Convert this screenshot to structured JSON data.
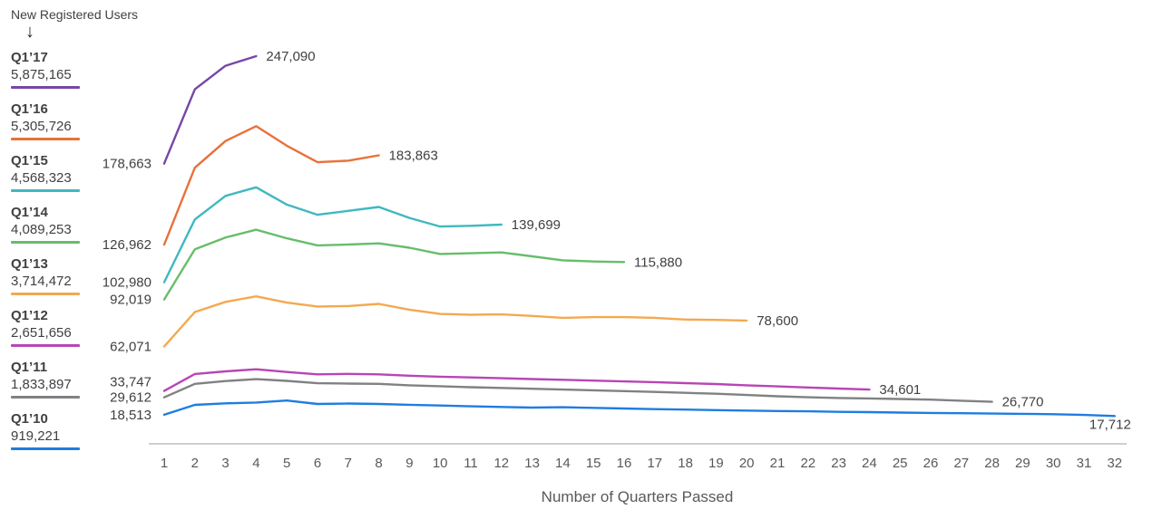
{
  "header": {
    "title": "New Registered Users"
  },
  "x_axis": {
    "title": "Number of Quarters Passed",
    "ticks": [
      "1",
      "2",
      "3",
      "4",
      "5",
      "6",
      "7",
      "8",
      "9",
      "10",
      "11",
      "12",
      "13",
      "14",
      "15",
      "16",
      "17",
      "18",
      "19",
      "20",
      "21",
      "22",
      "23",
      "24",
      "25",
      "26",
      "27",
      "28",
      "29",
      "30",
      "31",
      "32"
    ]
  },
  "colors": {
    "text_dark": "#414042",
    "text_muted": "#58595b",
    "axis_line": "#bcbec0",
    "background": "#ffffff"
  },
  "chart_data": {
    "type": "line",
    "title": "New Registered Users",
    "xlabel": "Number of Quarters Passed",
    "ylabel": "",
    "xlim": [
      1,
      32
    ],
    "ylim": [
      0,
      250000
    ],
    "grid": false,
    "legend_position": "left",
    "series": [
      {
        "id": "q1-17",
        "name": "Q1’17",
        "cohort_total": "5,875,165",
        "color": "#7646a6",
        "start_label": "178,663",
        "end_label": "247,090",
        "values": [
          178663,
          226000,
          241000,
          247090
        ]
      },
      {
        "id": "q1-16",
        "name": "Q1’16",
        "cohort_total": "5,305,726",
        "color": "#e8713a",
        "start_label": "126,962",
        "end_label": "183,863",
        "values": [
          126962,
          176000,
          193000,
          202500,
          190000,
          179500,
          180500,
          183863
        ]
      },
      {
        "id": "q1-15",
        "name": "Q1’15",
        "cohort_total": "4,568,323",
        "color": "#3fb8c1",
        "start_label": "102,980",
        "end_label": "139,699",
        "values": [
          102980,
          143000,
          158000,
          163500,
          152500,
          146000,
          148500,
          151000,
          144000,
          138500,
          139000,
          139699
        ]
      },
      {
        "id": "q1-14",
        "name": "Q1’14",
        "cohort_total": "4,089,253",
        "color": "#67bd6b",
        "start_label": "92,019",
        "end_label": "115,880",
        "values": [
          92019,
          124000,
          131500,
          136500,
          131000,
          126500,
          127000,
          127800,
          125000,
          121000,
          121500,
          122000,
          119500,
          117000,
          116200,
          115880
        ]
      },
      {
        "id": "q1-13",
        "name": "Q1’13",
        "cohort_total": "3,714,472",
        "color": "#f3a950",
        "start_label": "62,071",
        "end_label": "78,600",
        "values": [
          62071,
          84000,
          90500,
          94000,
          90000,
          87500,
          87800,
          89200,
          85500,
          82800,
          82300,
          82500,
          81500,
          80300,
          80800,
          80800,
          80300,
          79200,
          79000,
          78600
        ]
      },
      {
        "id": "q1-12",
        "name": "Q1’12",
        "cohort_total": "2,651,656",
        "color": "#b845b5",
        "start_label": "33,747",
        "end_label": "34,601",
        "values": [
          33747,
          44500,
          46200,
          47500,
          45800,
          44300,
          44600,
          44300,
          43400,
          42800,
          42300,
          41800,
          41300,
          40800,
          40300,
          39800,
          39300,
          38700,
          38100,
          37300,
          36600,
          35900,
          35200,
          34601
        ]
      },
      {
        "id": "q1-11",
        "name": "Q1’11",
        "cohort_total": "1,833,897",
        "color": "#808184",
        "start_label": "29,612",
        "end_label": "26,770",
        "values": [
          29612,
          38200,
          40000,
          41200,
          40100,
          38600,
          38400,
          38200,
          37300,
          36700,
          36100,
          35600,
          35100,
          34600,
          34100,
          33600,
          33100,
          32500,
          31900,
          31100,
          30300,
          29700,
          29200,
          28900,
          28600,
          28200,
          27500,
          26770
        ]
      },
      {
        "id": "q1-10",
        "name": "Q1’10",
        "cohort_total": "919,221",
        "color": "#1f7de0",
        "start_label": "18,513",
        "end_label": "17,712",
        "values": [
          18513,
          24800,
          25800,
          26300,
          27600,
          25400,
          25700,
          25400,
          24900,
          24400,
          23900,
          23500,
          23100,
          23300,
          22900,
          22500,
          22100,
          21800,
          21500,
          21200,
          20900,
          20700,
          20400,
          20200,
          19900,
          19700,
          19500,
          19300,
          19100,
          18900,
          18400,
          17712
        ]
      }
    ]
  }
}
